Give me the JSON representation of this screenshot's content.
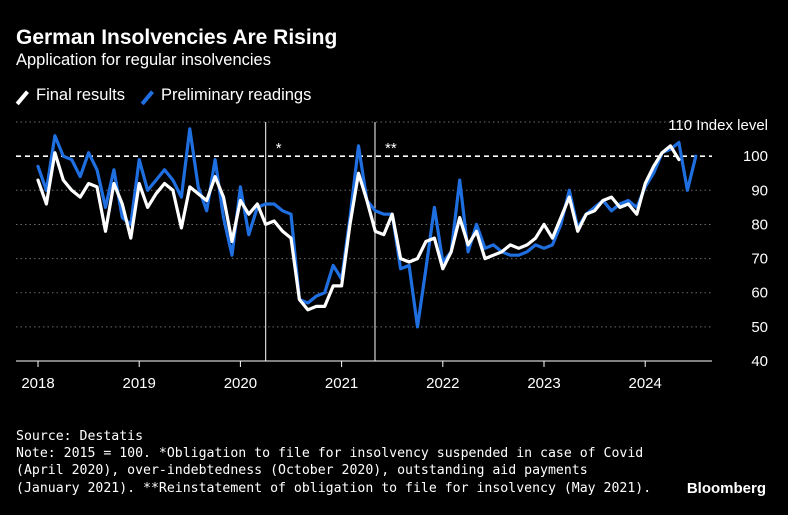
{
  "header": {
    "title": "German Insolvencies Are Rising",
    "subtitle": "Application for regular insolvencies"
  },
  "legend": {
    "final_label": "Final results",
    "prelim_label": "Preliminary readings"
  },
  "colors": {
    "final": "#ffffff",
    "preliminary": "#1f6fe0",
    "background": "#000000"
  },
  "footer": {
    "source": "Source: Destatis",
    "note_lines": [
      "Note: 2015 = 100. *Obligation to file for insolvency suspended in case of Covid",
      "(April 2020), over-indebtedness (October 2020), outstanding aid payments",
      "(January 2021). **Reinstatement of obligation to file for insolvency (May 2021)."
    ],
    "brand": "Bloomberg"
  },
  "chart_data": {
    "type": "line",
    "title": "German Insolvencies Are Rising",
    "subtitle": "Application for regular insolvencies",
    "y_axis_label": "Index level",
    "ylim": [
      40,
      110
    ],
    "y_ticks": [
      40,
      50,
      60,
      70,
      80,
      90,
      100
    ],
    "y_top_label": "110 Index level",
    "xlim": [
      2017.95,
      2024.75
    ],
    "x_ticks": [
      2018,
      2019,
      2020,
      2021,
      2022,
      2023,
      2024
    ],
    "reference_line": {
      "value": 100,
      "style": "dashed"
    },
    "event_markers": [
      {
        "x": 2020.25,
        "label": "*"
      },
      {
        "x": 2021.33,
        "label": "**"
      }
    ],
    "series": [
      {
        "name": "Final results",
        "color": "#ffffff",
        "x": [
          2018.0,
          2018.083,
          2018.167,
          2018.25,
          2018.333,
          2018.417,
          2018.5,
          2018.583,
          2018.667,
          2018.75,
          2018.833,
          2018.917,
          2019.0,
          2019.083,
          2019.167,
          2019.25,
          2019.333,
          2019.417,
          2019.5,
          2019.583,
          2019.667,
          2019.75,
          2019.833,
          2019.917,
          2020.0,
          2020.083,
          2020.167,
          2020.25,
          2020.333,
          2020.417,
          2020.5,
          2020.583,
          2020.667,
          2020.75,
          2020.833,
          2020.917,
          2021.0,
          2021.083,
          2021.167,
          2021.25,
          2021.333,
          2021.417,
          2021.5,
          2021.583,
          2021.667,
          2021.75,
          2021.833,
          2021.917,
          2022.0,
          2022.083,
          2022.167,
          2022.25,
          2022.333,
          2022.417,
          2022.5,
          2022.583,
          2022.667,
          2022.75,
          2022.833,
          2022.917,
          2023.0,
          2023.083,
          2023.167,
          2023.25,
          2023.333,
          2023.417,
          2023.5,
          2023.583,
          2023.667,
          2023.75,
          2023.833,
          2023.917,
          2024.0,
          2024.083,
          2024.167,
          2024.25,
          2024.333
        ],
        "values": [
          93,
          86,
          101,
          93,
          90,
          88,
          92,
          91,
          78,
          92,
          86,
          76,
          92,
          85,
          89,
          92,
          90,
          79,
          91,
          89,
          87,
          94,
          88,
          75,
          87,
          83,
          86,
          80,
          81,
          78,
          76,
          58,
          55,
          56,
          56,
          62,
          62,
          80,
          95,
          87,
          78,
          77,
          83,
          70,
          69,
          70,
          75,
          76,
          67,
          72,
          82,
          74,
          78,
          70,
          71,
          72,
          74,
          73,
          74,
          76,
          80,
          76,
          82,
          88,
          78,
          83,
          84,
          87,
          88,
          85,
          86,
          83,
          92,
          97,
          101,
          103,
          99
        ]
      },
      {
        "name": "Preliminary readings",
        "color": "#1f6fe0",
        "x": [
          2018.0,
          2018.083,
          2018.167,
          2018.25,
          2018.333,
          2018.417,
          2018.5,
          2018.583,
          2018.667,
          2018.75,
          2018.833,
          2018.917,
          2019.0,
          2019.083,
          2019.167,
          2019.25,
          2019.333,
          2019.417,
          2019.5,
          2019.583,
          2019.667,
          2019.75,
          2019.833,
          2019.917,
          2020.0,
          2020.083,
          2020.167,
          2020.25,
          2020.333,
          2020.417,
          2020.5,
          2020.583,
          2020.667,
          2020.75,
          2020.833,
          2020.917,
          2021.0,
          2021.083,
          2021.167,
          2021.25,
          2021.333,
          2021.417,
          2021.5,
          2021.583,
          2021.667,
          2021.75,
          2021.833,
          2021.917,
          2022.0,
          2022.083,
          2022.167,
          2022.25,
          2022.333,
          2022.417,
          2022.5,
          2022.583,
          2022.667,
          2022.75,
          2022.833,
          2022.917,
          2023.0,
          2023.083,
          2023.167,
          2023.25,
          2023.333,
          2023.417,
          2023.5,
          2023.583,
          2023.667,
          2023.75,
          2023.833,
          2023.917,
          2024.0,
          2024.083,
          2024.167,
          2024.25,
          2024.333,
          2024.417,
          2024.5
        ],
        "values": [
          97,
          90,
          106,
          100,
          99,
          94,
          101,
          96,
          85,
          96,
          82,
          80,
          99,
          90,
          93,
          96,
          93,
          88,
          108,
          91,
          84,
          99,
          82,
          71,
          91,
          77,
          85,
          86,
          86,
          84,
          83,
          58,
          57,
          59,
          60,
          68,
          64,
          82,
          103,
          87,
          84,
          83,
          83,
          67,
          68,
          50,
          67,
          85,
          69,
          72,
          93,
          72,
          80,
          73,
          74,
          72,
          71,
          71,
          72,
          74,
          73,
          74,
          80,
          90,
          79,
          83,
          85,
          87,
          84,
          86,
          87,
          85,
          91,
          95,
          101,
          102,
          104,
          90,
          100
        ]
      }
    ]
  }
}
